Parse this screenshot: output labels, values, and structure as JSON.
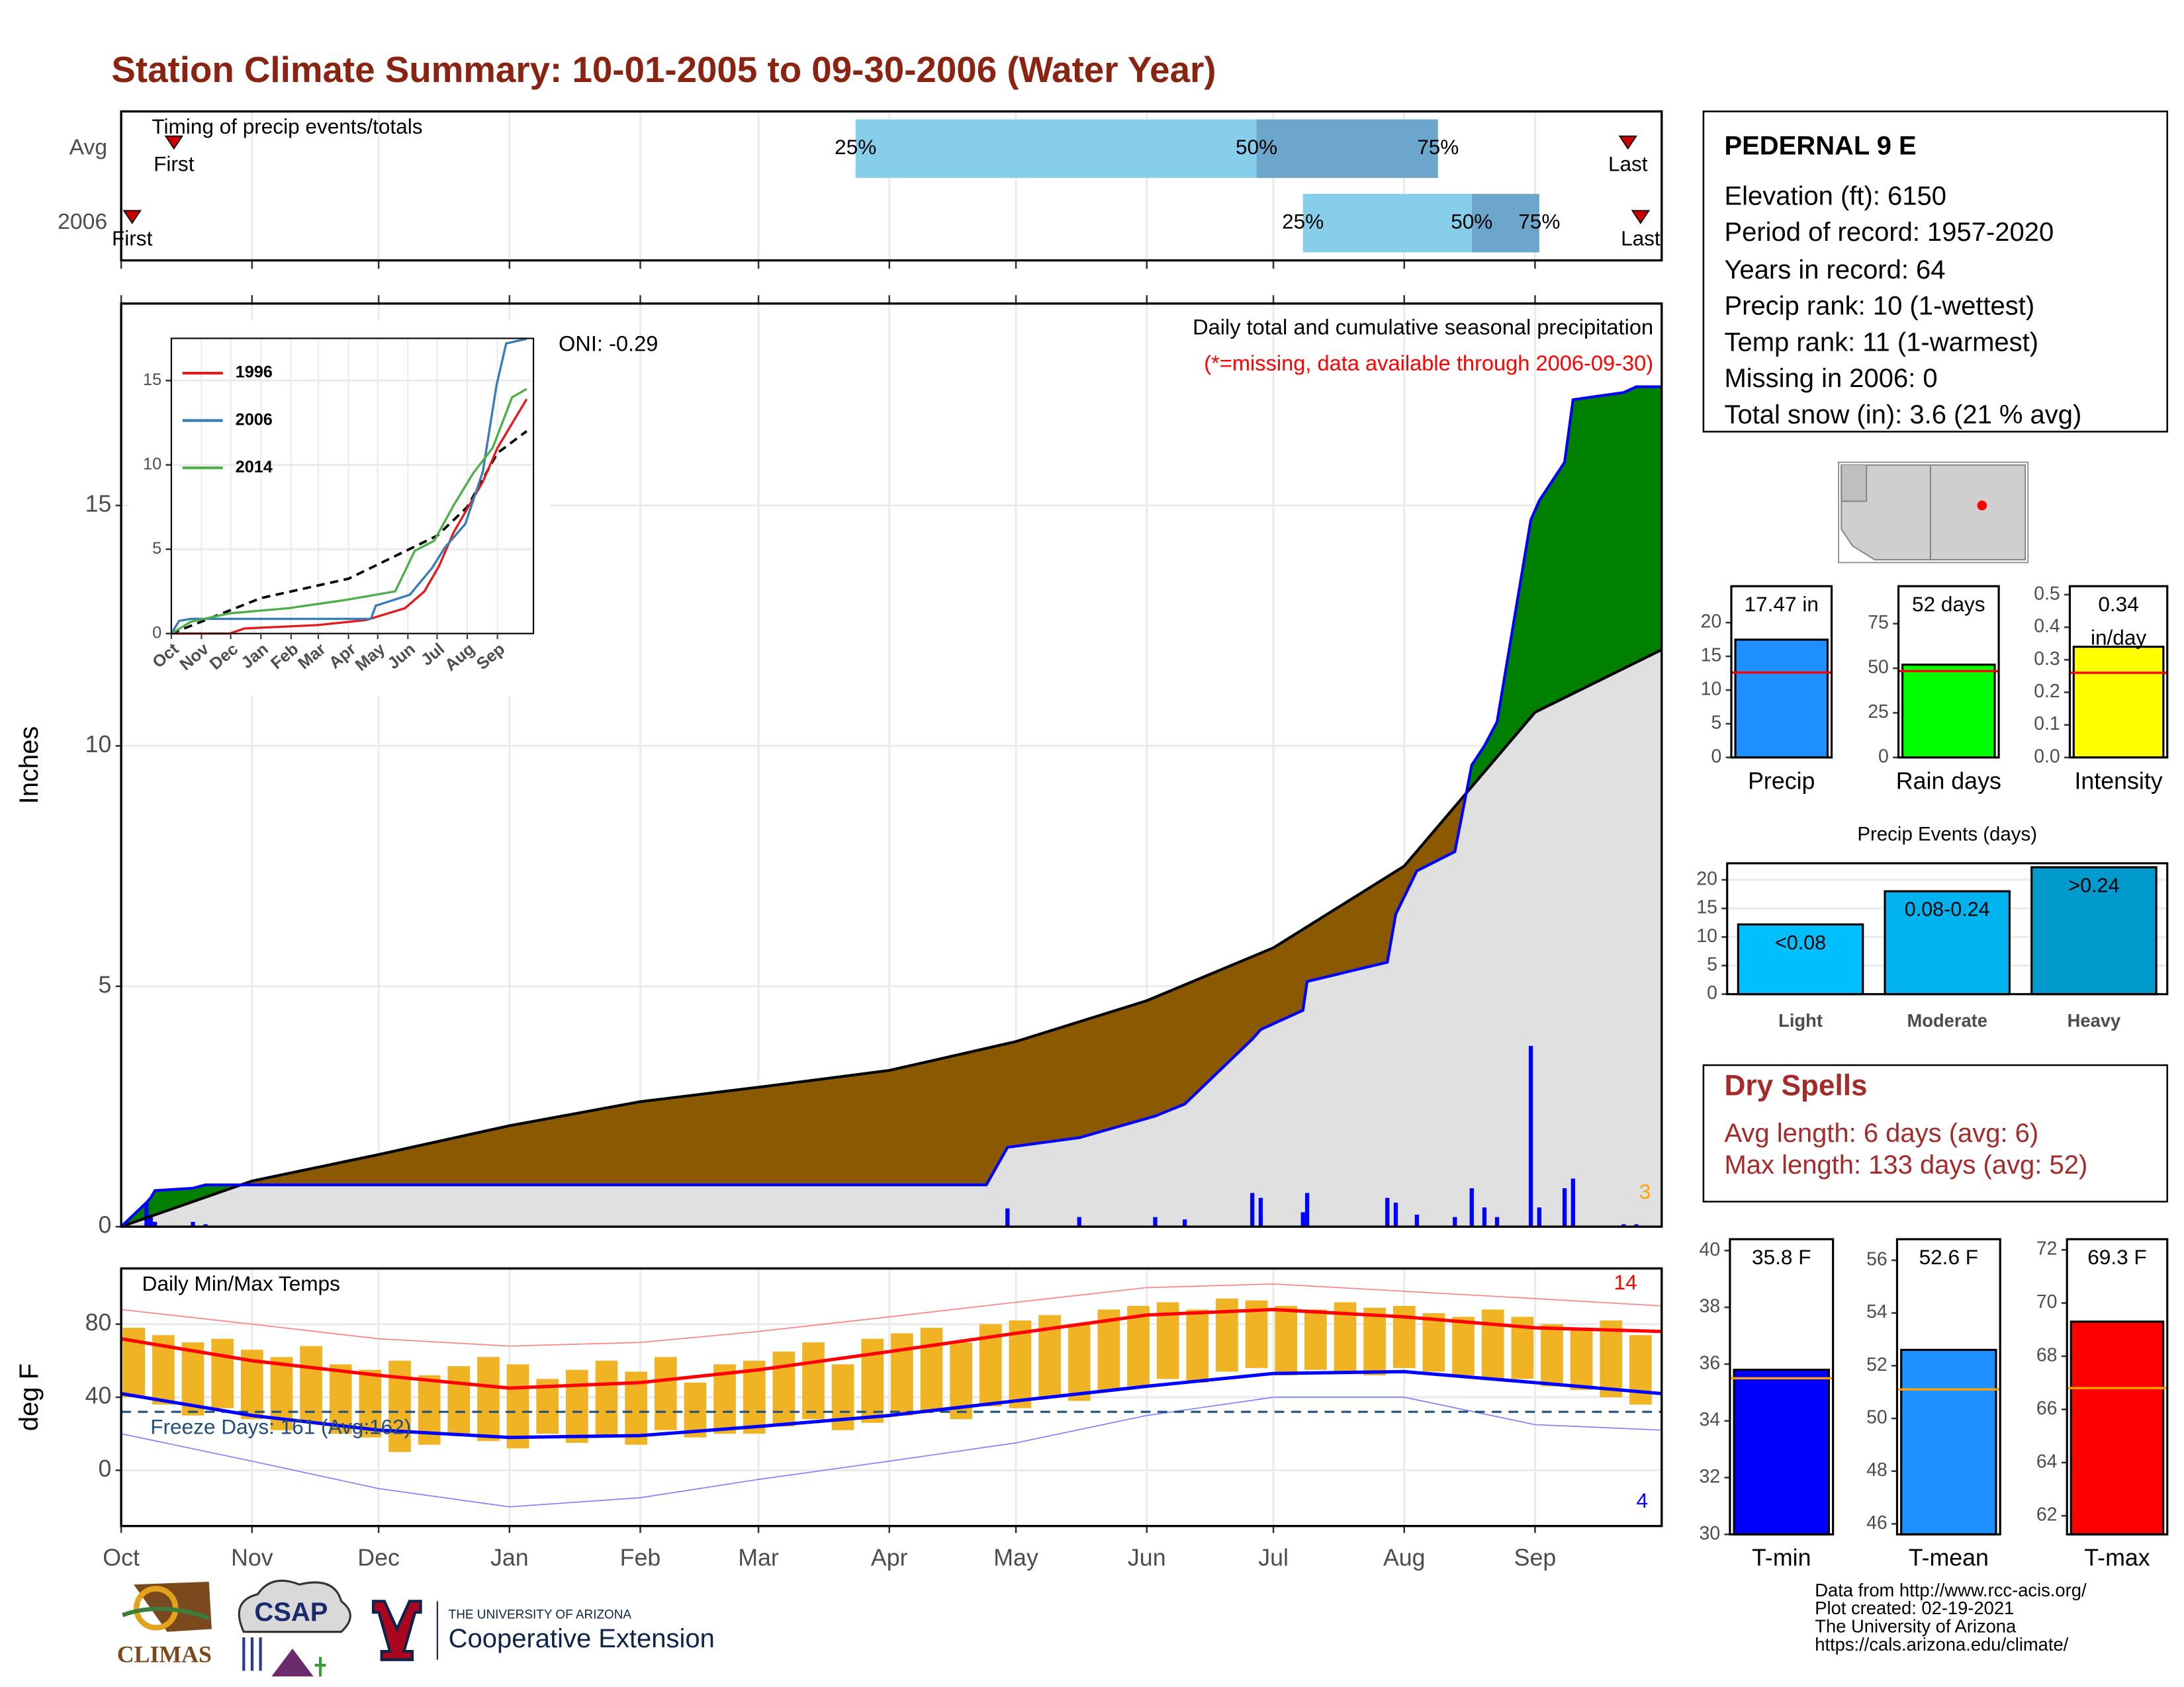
{
  "title": "Station Climate Summary: 10-01-2005 to 09-30-2006 (Water Year)",
  "station": {
    "name": "PEDERNAL 9 E",
    "lines": [
      "Elevation (ft): 6150",
      "Period of record: 1957-2020",
      "Years in record: 64",
      "Precip rank: 10 (1-wettest)",
      "Temp rank: 11 (1-warmest)",
      "Missing in 2006: 0",
      "Total snow (in): 3.6 (21 % avg)"
    ]
  },
  "dry_spells": {
    "title": "Dry Spells",
    "lines": [
      "Avg length: 6 days (avg: 6)",
      "Max length: 133 days (avg: 52)"
    ]
  },
  "footer": [
    "Data from http://www.rcc-acis.org/",
    "Plot created: 02-19-2021",
    "The University of Arizona",
    "https://cals.arizona.edu/climate/"
  ],
  "logos": {
    "climas": "CLIMAS",
    "csap": "CSAP",
    "university": "THE UNIVERSITY OF ARIZONA",
    "extension": "Cooperative Extension"
  },
  "chart_data": [
    {
      "type": "timeline",
      "title": "Timing of precip events/totals",
      "categories": [
        "Avg",
        "2006"
      ],
      "first": [
        12.5,
        2.6
      ],
      "q25": [
        174,
        280
      ],
      "q50": [
        269,
        320
      ],
      "q75": [
        312,
        336
      ],
      "last": [
        357,
        360
      ],
      "first_label": "First",
      "last_label": "Last",
      "quantile_labels": [
        "25%",
        "50%",
        "75%"
      ],
      "colors": [
        "#87ceeb",
        "#6ca6cd"
      ],
      "marker_color": "#cc0000",
      "xlim": [
        0,
        365
      ],
      "xticks": [
        0,
        31,
        61,
        92,
        123,
        151,
        182,
        212,
        243,
        273,
        304,
        335
      ]
    },
    {
      "type": "area",
      "title": "Daily total and cumulative seasonal precipitation",
      "subtitle": "(*=missing, data available through 2006-09-30)",
      "annotation": "ONI: -0.29",
      "ylabel": "Inches",
      "xlim": [
        0,
        365
      ],
      "ylim": [
        0,
        19.2
      ],
      "xticks": [
        0,
        31,
        61,
        92,
        123,
        151,
        182,
        212,
        243,
        273,
        304,
        335
      ],
      "yticks": [
        0,
        5,
        10,
        15
      ],
      "grid": true,
      "average": {
        "x": [
          0,
          31,
          61,
          92,
          123,
          151,
          182,
          212,
          243,
          273,
          304,
          335,
          365
        ],
        "values": [
          0,
          0.95,
          1.5,
          2.1,
          2.6,
          2.9,
          3.25,
          3.85,
          4.7,
          5.8,
          7.5,
          10.7,
          12.0
        ],
        "color": "#000000",
        "fill": "#8b5a00"
      },
      "current": {
        "x": [
          0,
          6,
          7,
          8,
          17,
          20,
          205,
          210,
          227,
          245,
          252,
          268,
          270,
          280,
          281,
          300,
          302,
          307,
          316,
          320,
          323,
          326,
          334,
          336,
          342,
          344,
          356,
          359,
          365
        ],
        "values": [
          0,
          0.5,
          0.6,
          0.75,
          0.8,
          0.87,
          0.87,
          1.65,
          1.85,
          2.3,
          2.55,
          3.9,
          4.1,
          4.5,
          5.1,
          5.5,
          6.5,
          7.4,
          7.8,
          9.6,
          10.0,
          10.5,
          14.7,
          15.1,
          15.9,
          17.2,
          17.35,
          17.47,
          17.47
        ],
        "color": "#0000ff",
        "fill": "#008000"
      },
      "below_fill": "#e0e0e0",
      "daily": {
        "x": [
          6,
          7,
          8,
          17,
          20,
          210,
          227,
          245,
          252,
          268,
          270,
          280,
          281,
          300,
          302,
          307,
          316,
          320,
          323,
          326,
          334,
          336,
          342,
          344,
          356,
          359
        ],
        "values": [
          0.5,
          0.25,
          0.1,
          0.1,
          0.05,
          0.38,
          0.2,
          0.2,
          0.15,
          0.7,
          0.6,
          0.3,
          0.7,
          0.6,
          0.5,
          0.25,
          0.2,
          0.8,
          0.4,
          0.2,
          3.76,
          0.4,
          0.8,
          1.0,
          0.05,
          0.05
        ],
        "color": "#0000ff"
      },
      "count_label": "3",
      "count_color": "#ffa500"
    },
    {
      "type": "line",
      "xlim": [
        0,
        372
      ],
      "ylim": [
        0,
        17.5
      ],
      "xticks": [
        {
          "value": 0,
          "label": "Oct"
        },
        {
          "value": 31,
          "label": "Nov"
        },
        {
          "value": 61,
          "label": "Dec"
        },
        {
          "value": 92,
          "label": "Jan"
        },
        {
          "value": 123,
          "label": "Feb"
        },
        {
          "value": 151,
          "label": "Mar"
        },
        {
          "value": 182,
          "label": "Apr"
        },
        {
          "value": 212,
          "label": "May"
        },
        {
          "value": 243,
          "label": "Jun"
        },
        {
          "value": 273,
          "label": "Jul"
        },
        {
          "value": 304,
          "label": "Aug"
        },
        {
          "value": 335,
          "label": "Sep"
        }
      ],
      "yticks": [
        0,
        5,
        10,
        15
      ],
      "series": [
        {
          "name": "1996",
          "color": "#e41a1c",
          "x": [
            0,
            60,
            75,
            150,
            200,
            240,
            260,
            275,
            290,
            300,
            320,
            335,
            365
          ],
          "values": [
            0,
            0,
            0.3,
            0.5,
            0.8,
            1.5,
            2.5,
            4,
            6,
            7,
            9,
            11,
            13.9
          ]
        },
        {
          "name": "2006",
          "color": "#377eb8",
          "x": [
            0,
            8,
            20,
            205,
            210,
            245,
            268,
            281,
            302,
            320,
            334,
            344,
            365
          ],
          "values": [
            0,
            0.75,
            0.87,
            0.87,
            1.65,
            2.3,
            3.9,
            5.1,
            6.5,
            9.6,
            14.7,
            17.2,
            17.47
          ]
        },
        {
          "name": "2014",
          "color": "#4daf4a",
          "x": [
            0,
            20,
            60,
            120,
            180,
            230,
            250,
            270,
            290,
            310,
            330,
            350,
            365
          ],
          "values": [
            0,
            0.7,
            1.2,
            1.5,
            2.0,
            2.5,
            4.9,
            5.5,
            7.6,
            9.5,
            11,
            14,
            14.5
          ]
        }
      ],
      "average": {
        "x": [
          0,
          92,
          182,
          273,
          304,
          335,
          365
        ],
        "values": [
          0,
          2.1,
          3.25,
          5.8,
          7.5,
          10.7,
          12.0
        ],
        "color": "#000000"
      }
    },
    {
      "type": "range_bar",
      "title": "Daily Min/Max Temps",
      "ylabel": "deg F",
      "xlim": [
        0,
        365
      ],
      "ylim": [
        -30.5,
        110.5
      ],
      "xticks": [
        {
          "value": 0,
          "label": "Oct"
        },
        {
          "value": 31,
          "label": "Nov"
        },
        {
          "value": 61,
          "label": "Dec"
        },
        {
          "value": 92,
          "label": "Jan"
        },
        {
          "value": 123,
          "label": "Feb"
        },
        {
          "value": 151,
          "label": "Mar"
        },
        {
          "value": 182,
          "label": "Apr"
        },
        {
          "value": 212,
          "label": "May"
        },
        {
          "value": 243,
          "label": "Jun"
        },
        {
          "value": 273,
          "label": "Jul"
        },
        {
          "value": 304,
          "label": "Aug"
        },
        {
          "value": 335,
          "label": "Sep"
        }
      ],
      "yticks": [
        0,
        40,
        80
      ],
      "x": [
        3,
        10,
        17,
        24,
        31,
        38,
        45,
        52,
        59,
        66,
        73,
        80,
        87,
        94,
        101,
        108,
        115,
        122,
        129,
        136,
        143,
        150,
        157,
        164,
        171,
        178,
        185,
        192,
        199,
        206,
        213,
        220,
        227,
        234,
        241,
        248,
        255,
        262,
        269,
        276,
        283,
        290,
        297,
        304,
        311,
        318,
        325,
        332,
        339,
        346,
        353,
        360
      ],
      "max": [
        78,
        74,
        70,
        72,
        66,
        62,
        68,
        58,
        55,
        60,
        52,
        57,
        62,
        58,
        50,
        55,
        60,
        54,
        62,
        48,
        58,
        60,
        65,
        70,
        58,
        72,
        75,
        78,
        70,
        80,
        82,
        85,
        80,
        88,
        90,
        92,
        88,
        94,
        93,
        90,
        88,
        92,
        89,
        90,
        86,
        84,
        88,
        84,
        80,
        78,
        82,
        74
      ],
      "min": [
        40,
        36,
        30,
        34,
        28,
        22,
        26,
        20,
        18,
        10,
        14,
        20,
        16,
        12,
        20,
        15,
        18,
        14,
        22,
        18,
        20,
        20,
        24,
        28,
        22,
        26,
        30,
        32,
        28,
        35,
        34,
        40,
        38,
        44,
        46,
        50,
        48,
        54,
        56,
        52,
        55,
        54,
        52,
        56,
        54,
        52,
        50,
        50,
        46,
        44,
        40,
        36
      ],
      "bar_color": "#f0b323",
      "monthly_x": [
        0,
        31,
        61,
        92,
        123,
        151,
        182,
        212,
        243,
        273,
        304,
        335,
        365
      ],
      "avg_max": {
        "values": [
          72,
          60,
          52,
          45,
          48,
          55,
          65,
          75,
          85,
          88,
          84,
          78,
          76
        ],
        "color": "#ff0000"
      },
      "avg_min": {
        "values": [
          42,
          30,
          22,
          18,
          19,
          24,
          30,
          38,
          46,
          53,
          54,
          48,
          42
        ],
        "color": "#0000ff"
      },
      "record_max": {
        "values": [
          88,
          80,
          72,
          68,
          70,
          76,
          84,
          92,
          100,
          102,
          98,
          94,
          90
        ],
        "color": "#ff8080"
      },
      "record_min": {
        "values": [
          20,
          5,
          -10,
          -20,
          -15,
          -5,
          5,
          15,
          30,
          40,
          40,
          25,
          22
        ],
        "color": "#8080ff"
      },
      "freeze": 32,
      "freeze_label": "Freeze Days: 161 (Avg:162)",
      "freeze_color": "#1f4e79",
      "max_count_label": "14",
      "min_count_label": "4"
    },
    {
      "type": "bar",
      "categories": [
        "Precip"
      ],
      "values": [
        17.47
      ],
      "value_labels": [
        "17.47 in"
      ],
      "average": 12.6,
      "average_color": "#ff0000",
      "color": "#1e90ff",
      "ylim": [
        0,
        25.4
      ],
      "yticks": [
        0,
        5,
        10,
        15,
        20
      ]
    },
    {
      "type": "bar",
      "categories": [
        "Rain days"
      ],
      "values": [
        52
      ],
      "value_labels": [
        "52 days"
      ],
      "average": 48.4,
      "average_color": "#ff0000",
      "color": "#00ff00",
      "ylim": [
        0,
        96
      ],
      "yticks": [
        0,
        25,
        50,
        75
      ]
    },
    {
      "type": "bar",
      "categories": [
        "Intensity"
      ],
      "values": [
        0.34
      ],
      "value_labels": [
        "0.34 in/day"
      ],
      "average": 0.26,
      "average_color": "#ff0000",
      "color": "#ffff00",
      "ylim": [
        0,
        0.526
      ],
      "yticks": [
        {
          "value": 0,
          "label": "0.0"
        },
        0.1,
        0.2,
        0.3,
        0.4,
        0.5
      ]
    },
    {
      "type": "bar",
      "title": "Precip Events (days)",
      "categories": [
        "Light",
        "Moderate",
        "Heavy"
      ],
      "values": [
        12.2,
        18,
        22.2
      ],
      "bin_labels": [
        "<0.08",
        "0.08-0.24",
        ">0.24"
      ],
      "colors": [
        "#00bfff",
        "#00b2ee",
        "#009acd"
      ],
      "ylim": [
        0,
        22.9
      ],
      "yticks": [
        0,
        5,
        10,
        15,
        20
      ]
    },
    {
      "type": "bar",
      "categories": [
        "T-min"
      ],
      "values": [
        35.8
      ],
      "value_labels": [
        "35.8 F"
      ],
      "average": 35.5,
      "average_color": "#ffa500",
      "color": "#0000ff",
      "ylim": [
        30,
        40.4
      ],
      "yticks": [
        30,
        32,
        34,
        36,
        38,
        40
      ]
    },
    {
      "type": "bar",
      "categories": [
        "T-mean"
      ],
      "values": [
        52.6
      ],
      "value_labels": [
        "52.6 F"
      ],
      "average": 51.1,
      "average_color": "#ffa500",
      "color": "#1e90ff",
      "ylim": [
        45.6,
        56.8
      ],
      "yticks": [
        46,
        48,
        50,
        52,
        54,
        56
      ]
    },
    {
      "type": "bar",
      "categories": [
        "T-max"
      ],
      "values": [
        69.3
      ],
      "value_labels": [
        "69.3 F"
      ],
      "average": 66.8,
      "average_color": "#ffa500",
      "color": "#ff0000",
      "ylim": [
        61.3,
        72.4
      ],
      "yticks": [
        62,
        64,
        66,
        68,
        70,
        72
      ]
    }
  ]
}
